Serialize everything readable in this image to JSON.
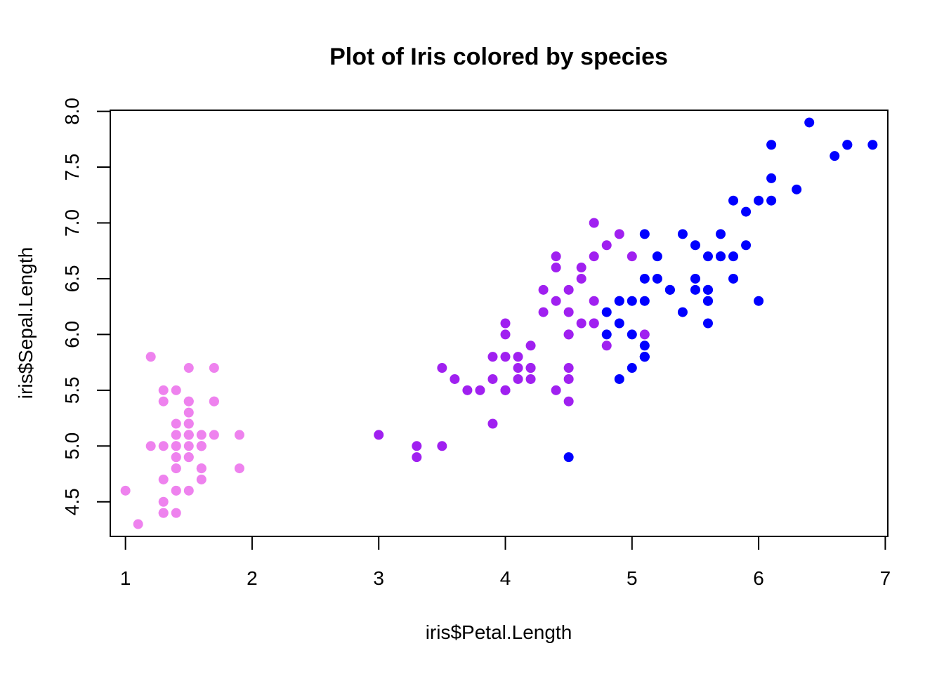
{
  "chart_data": {
    "type": "scatter",
    "title": "Plot of Iris colored by species",
    "xlabel": "iris$Petal.Length",
    "ylabel": "iris$Sepal.Length",
    "xlim": [
      0.88,
      7.02
    ],
    "ylim": [
      4.19,
      8.01
    ],
    "x_ticks": [
      "1",
      "2",
      "3",
      "4",
      "5",
      "6",
      "7"
    ],
    "y_ticks": [
      "4.5",
      "5.0",
      "5.5",
      "6.0",
      "6.5",
      "7.0",
      "7.5",
      "8.0"
    ],
    "grid": false,
    "legend": "none",
    "series": [
      {
        "color": "#ee82ee",
        "points": [
          [
            1.4,
            5.1
          ],
          [
            1.4,
            4.9
          ],
          [
            1.3,
            4.7
          ],
          [
            1.5,
            4.6
          ],
          [
            1.4,
            5.0
          ],
          [
            1.7,
            5.4
          ],
          [
            1.4,
            4.6
          ],
          [
            1.5,
            5.0
          ],
          [
            1.4,
            4.4
          ],
          [
            1.5,
            4.9
          ],
          [
            1.5,
            5.4
          ],
          [
            1.6,
            4.8
          ],
          [
            1.4,
            4.8
          ],
          [
            1.1,
            4.3
          ],
          [
            1.2,
            5.8
          ],
          [
            1.5,
            5.7
          ],
          [
            1.3,
            5.4
          ],
          [
            1.4,
            5.1
          ],
          [
            1.7,
            5.7
          ],
          [
            1.5,
            5.1
          ],
          [
            1.7,
            5.4
          ],
          [
            1.5,
            5.1
          ],
          [
            1.0,
            4.6
          ],
          [
            1.7,
            5.1
          ],
          [
            1.9,
            4.8
          ],
          [
            1.6,
            5.0
          ],
          [
            1.6,
            5.0
          ],
          [
            1.5,
            5.2
          ],
          [
            1.4,
            5.2
          ],
          [
            1.6,
            4.7
          ],
          [
            1.6,
            4.8
          ],
          [
            1.5,
            5.4
          ],
          [
            1.5,
            5.2
          ],
          [
            1.4,
            5.5
          ],
          [
            1.5,
            4.9
          ],
          [
            1.2,
            5.0
          ],
          [
            1.3,
            5.5
          ],
          [
            1.4,
            4.9
          ],
          [
            1.3,
            4.4
          ],
          [
            1.5,
            5.1
          ],
          [
            1.3,
            5.0
          ],
          [
            1.3,
            4.5
          ],
          [
            1.3,
            4.4
          ],
          [
            1.6,
            5.0
          ],
          [
            1.9,
            5.1
          ],
          [
            1.4,
            4.8
          ],
          [
            1.6,
            5.1
          ],
          [
            1.4,
            4.6
          ],
          [
            1.5,
            5.3
          ],
          [
            1.4,
            5.0
          ]
        ]
      },
      {
        "color": "#a020f0",
        "points": [
          [
            4.7,
            7.0
          ],
          [
            4.5,
            6.4
          ],
          [
            4.9,
            6.9
          ],
          [
            4.0,
            5.5
          ],
          [
            4.6,
            6.5
          ],
          [
            4.5,
            5.7
          ],
          [
            4.7,
            6.3
          ],
          [
            3.3,
            4.9
          ],
          [
            4.6,
            6.6
          ],
          [
            3.9,
            5.2
          ],
          [
            3.5,
            5.0
          ],
          [
            4.2,
            5.9
          ],
          [
            4.0,
            6.0
          ],
          [
            4.7,
            6.1
          ],
          [
            3.6,
            5.6
          ],
          [
            4.4,
            6.7
          ],
          [
            4.5,
            5.6
          ],
          [
            4.1,
            5.8
          ],
          [
            4.5,
            6.2
          ],
          [
            3.9,
            5.6
          ],
          [
            4.8,
            5.9
          ],
          [
            4.0,
            6.1
          ],
          [
            4.9,
            6.3
          ],
          [
            4.7,
            6.1
          ],
          [
            4.3,
            6.4
          ],
          [
            4.4,
            6.6
          ],
          [
            4.8,
            6.8
          ],
          [
            5.0,
            6.7
          ],
          [
            4.5,
            6.0
          ],
          [
            3.5,
            5.7
          ],
          [
            3.8,
            5.5
          ],
          [
            3.7,
            5.5
          ],
          [
            3.9,
            5.8
          ],
          [
            5.1,
            6.0
          ],
          [
            4.5,
            5.4
          ],
          [
            4.5,
            6.0
          ],
          [
            4.7,
            6.7
          ],
          [
            4.4,
            6.3
          ],
          [
            4.1,
            5.6
          ],
          [
            4.0,
            5.5
          ],
          [
            4.4,
            5.5
          ],
          [
            4.6,
            6.1
          ],
          [
            4.0,
            5.8
          ],
          [
            3.3,
            5.0
          ],
          [
            4.2,
            5.6
          ],
          [
            4.2,
            5.7
          ],
          [
            4.2,
            5.7
          ],
          [
            4.3,
            6.2
          ],
          [
            3.0,
            5.1
          ],
          [
            4.1,
            5.7
          ]
        ]
      },
      {
        "color": "#0000ff",
        "points": [
          [
            6.0,
            6.3
          ],
          [
            5.1,
            5.8
          ],
          [
            5.9,
            7.1
          ],
          [
            5.6,
            6.3
          ],
          [
            5.8,
            6.5
          ],
          [
            6.6,
            7.6
          ],
          [
            4.5,
            4.9
          ],
          [
            6.3,
            7.3
          ],
          [
            5.8,
            6.7
          ],
          [
            6.1,
            7.2
          ],
          [
            5.1,
            6.5
          ],
          [
            5.3,
            6.4
          ],
          [
            5.5,
            6.8
          ],
          [
            5.0,
            5.7
          ],
          [
            5.1,
            5.8
          ],
          [
            5.3,
            6.4
          ],
          [
            5.5,
            6.5
          ],
          [
            6.7,
            7.7
          ],
          [
            6.9,
            7.7
          ],
          [
            5.0,
            6.0
          ],
          [
            5.7,
            6.9
          ],
          [
            4.9,
            5.6
          ],
          [
            6.7,
            7.7
          ],
          [
            4.9,
            6.3
          ],
          [
            5.7,
            6.7
          ],
          [
            6.0,
            7.2
          ],
          [
            4.8,
            6.2
          ],
          [
            4.9,
            6.1
          ],
          [
            5.6,
            6.4
          ],
          [
            5.8,
            7.2
          ],
          [
            6.1,
            7.4
          ],
          [
            6.4,
            7.9
          ],
          [
            5.6,
            6.4
          ],
          [
            5.1,
            6.3
          ],
          [
            5.6,
            6.1
          ],
          [
            6.1,
            7.7
          ],
          [
            5.6,
            6.3
          ],
          [
            5.5,
            6.4
          ],
          [
            4.8,
            6.0
          ],
          [
            5.4,
            6.9
          ],
          [
            5.6,
            6.7
          ],
          [
            5.1,
            6.9
          ],
          [
            5.1,
            5.8
          ],
          [
            5.9,
            6.8
          ],
          [
            5.7,
            6.7
          ],
          [
            5.2,
            6.7
          ],
          [
            5.0,
            6.3
          ],
          [
            5.2,
            6.5
          ],
          [
            5.4,
            6.2
          ],
          [
            5.1,
            5.9
          ]
        ]
      }
    ]
  }
}
